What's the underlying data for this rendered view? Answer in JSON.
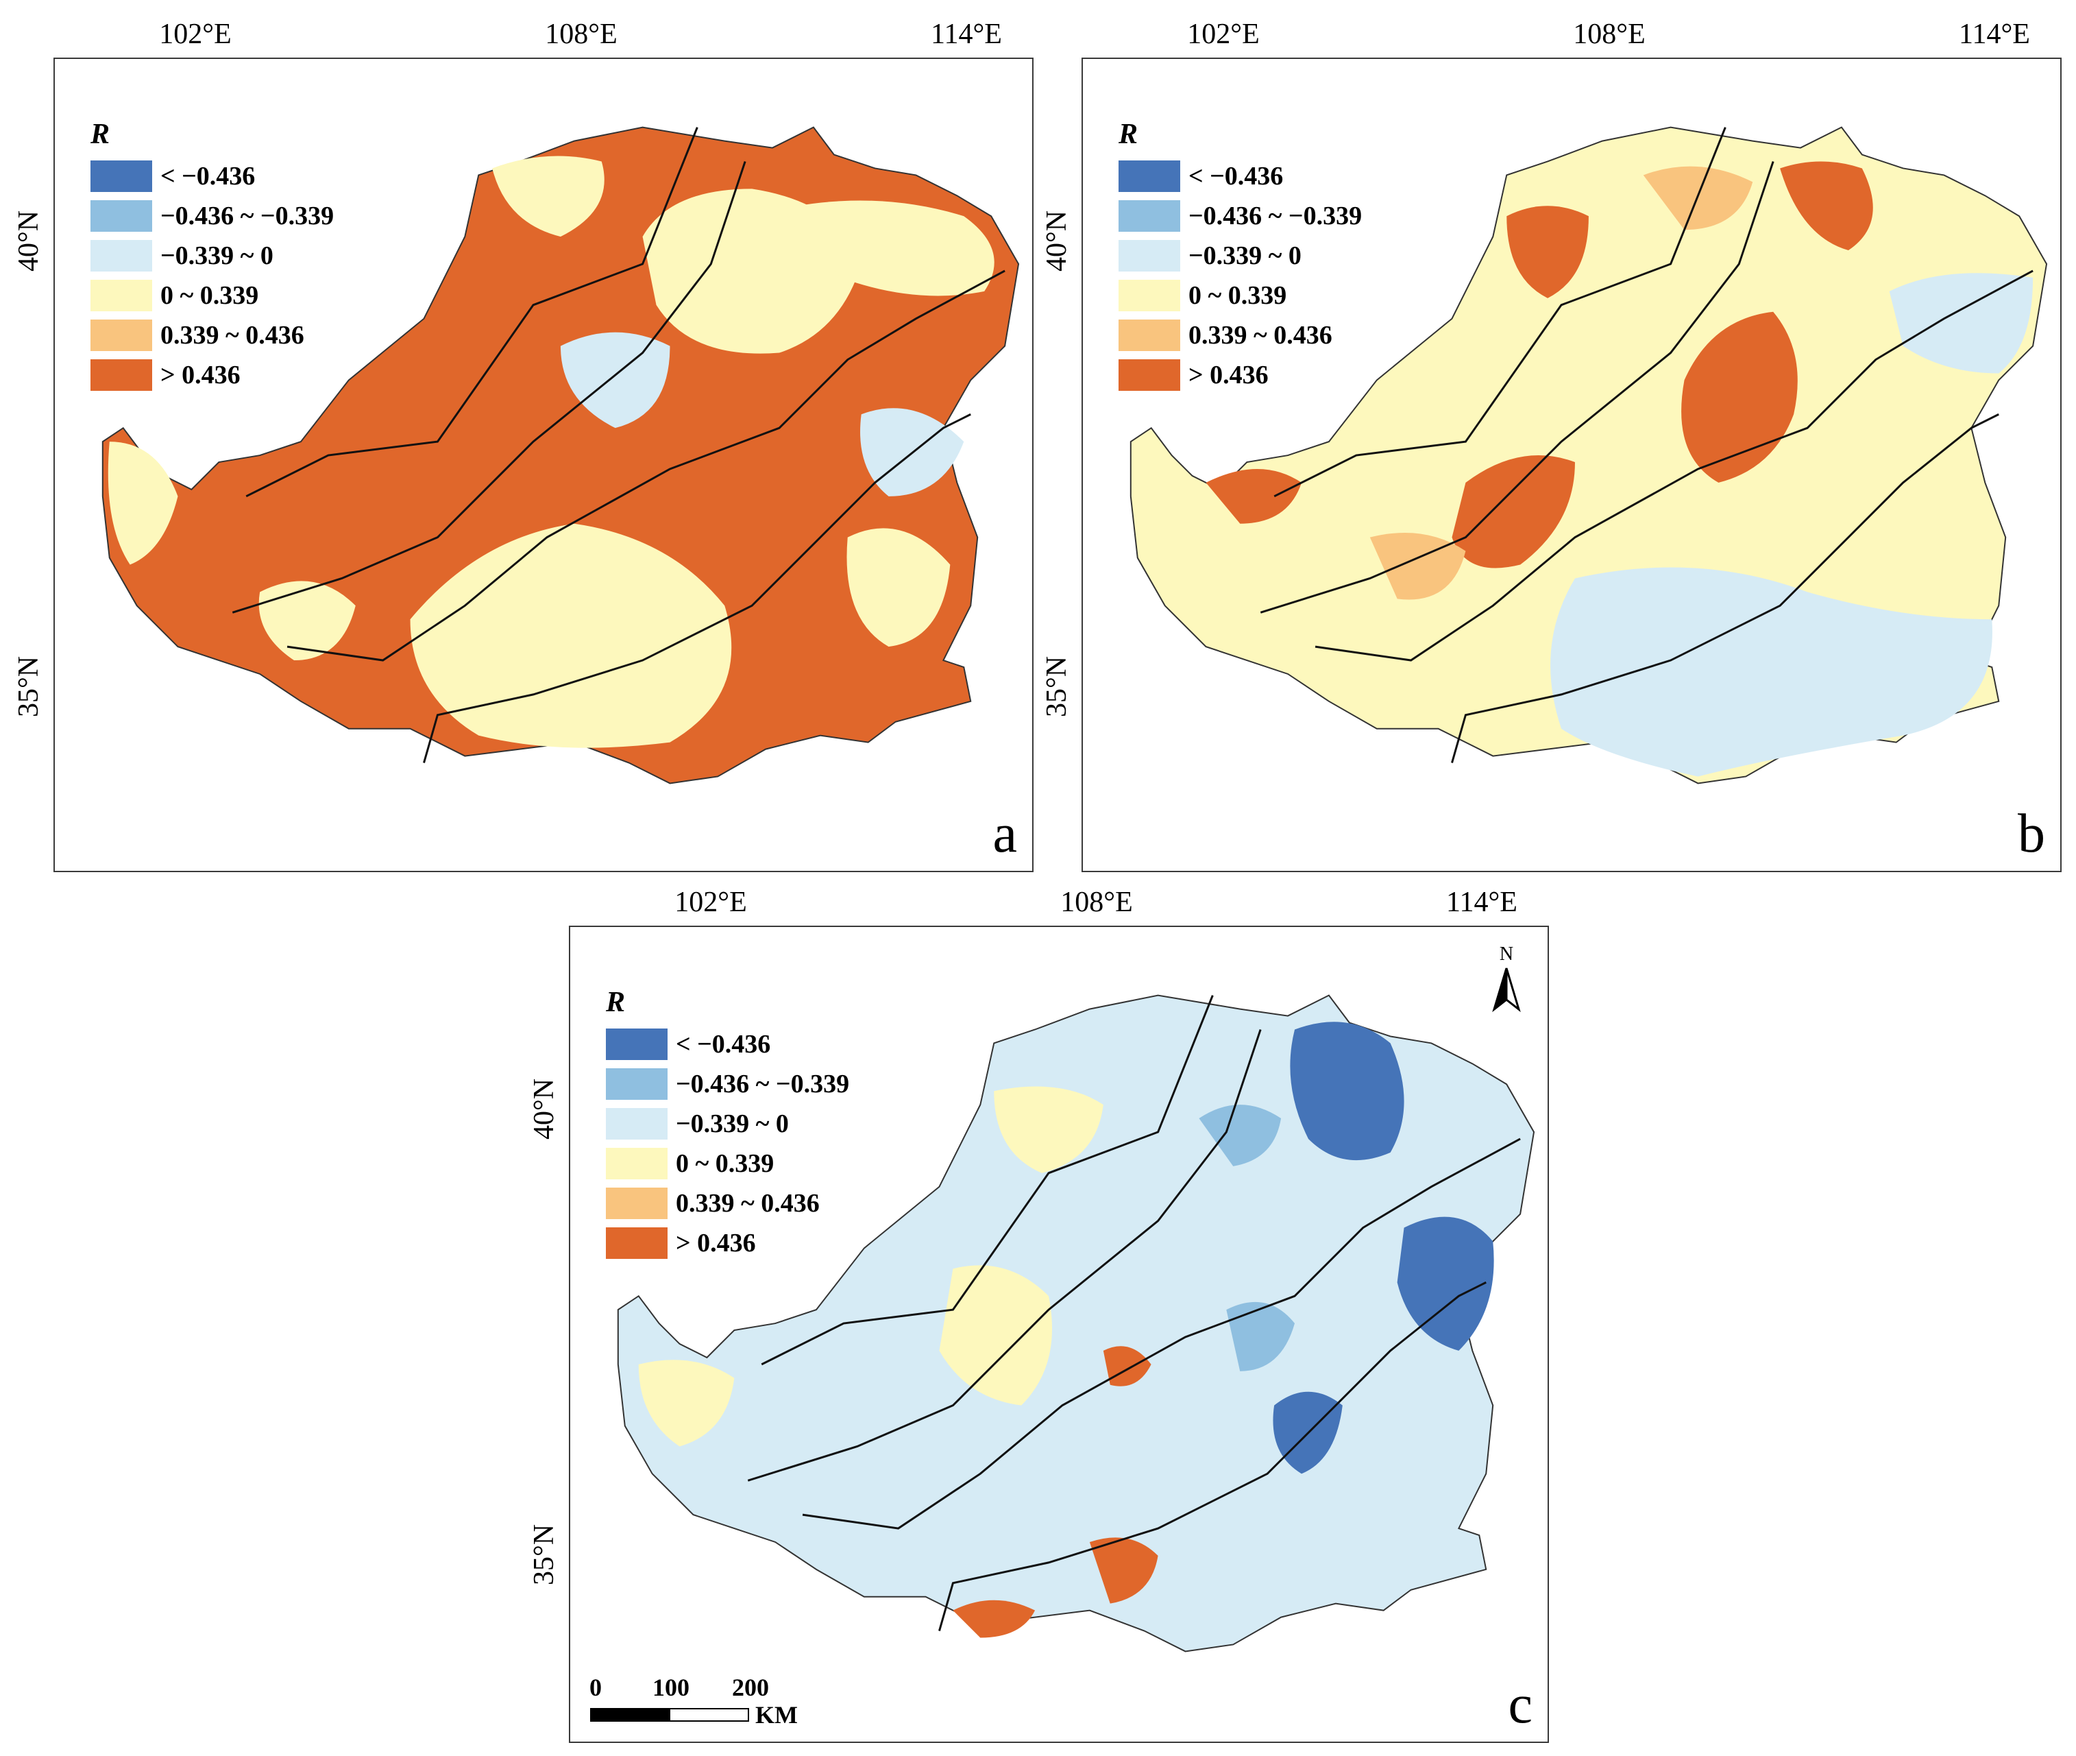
{
  "legend": {
    "title": "R",
    "items": [
      {
        "label": "< −0.436",
        "color": "#4574b8"
      },
      {
        "label": "−0.436 ~ −0.339",
        "color": "#8fbfe0"
      },
      {
        "label": "−0.339 ~ 0",
        "color": "#d6ebf5"
      },
      {
        "label": "0 ~ 0.339",
        "color": "#fdf8bd"
      },
      {
        "label": "0.339 ~ 0.436",
        "color": "#f9c47e"
      },
      {
        "label": "> 0.436",
        "color": "#e0672b"
      }
    ]
  },
  "axes": {
    "lon_labels": [
      "102°E",
      "108°E",
      "114°E"
    ],
    "lat_labels": [
      "40°N",
      "35°N"
    ]
  },
  "panels": [
    {
      "letter": "a",
      "dominant": "#e0672b",
      "secondary": "#fdf8bd"
    },
    {
      "letter": "b",
      "dominant": "#fdf8bd",
      "secondary": "#e0672b"
    },
    {
      "letter": "c",
      "dominant": "#d6ebf5",
      "secondary": "#4574b8"
    }
  ],
  "north_arrow": {
    "label": "N"
  },
  "scale_bar": {
    "ticks": [
      "0",
      "100",
      "200"
    ],
    "unit": "KM"
  }
}
